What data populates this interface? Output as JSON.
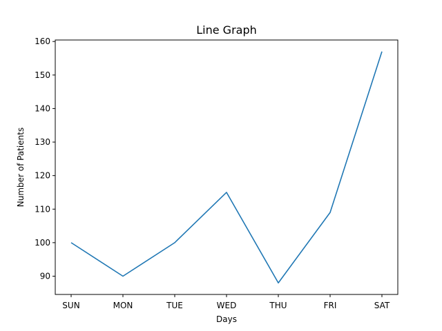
{
  "chart_data": {
    "type": "line",
    "title": "Line Graph",
    "xlabel": "Days",
    "ylabel": "Number of Patients",
    "categories": [
      "SUN",
      "MON",
      "TUE",
      "WED",
      "THU",
      "FRI",
      "SAT"
    ],
    "series": [
      {
        "values": [
          100,
          90,
          100,
          115,
          88,
          109,
          157
        ],
        "color": "#1f77b4"
      }
    ],
    "ylim": [
      84.55,
      160.45
    ],
    "yticks": [
      90,
      100,
      110,
      120,
      130,
      140,
      150,
      160
    ],
    "grid": false,
    "legend": "none"
  }
}
